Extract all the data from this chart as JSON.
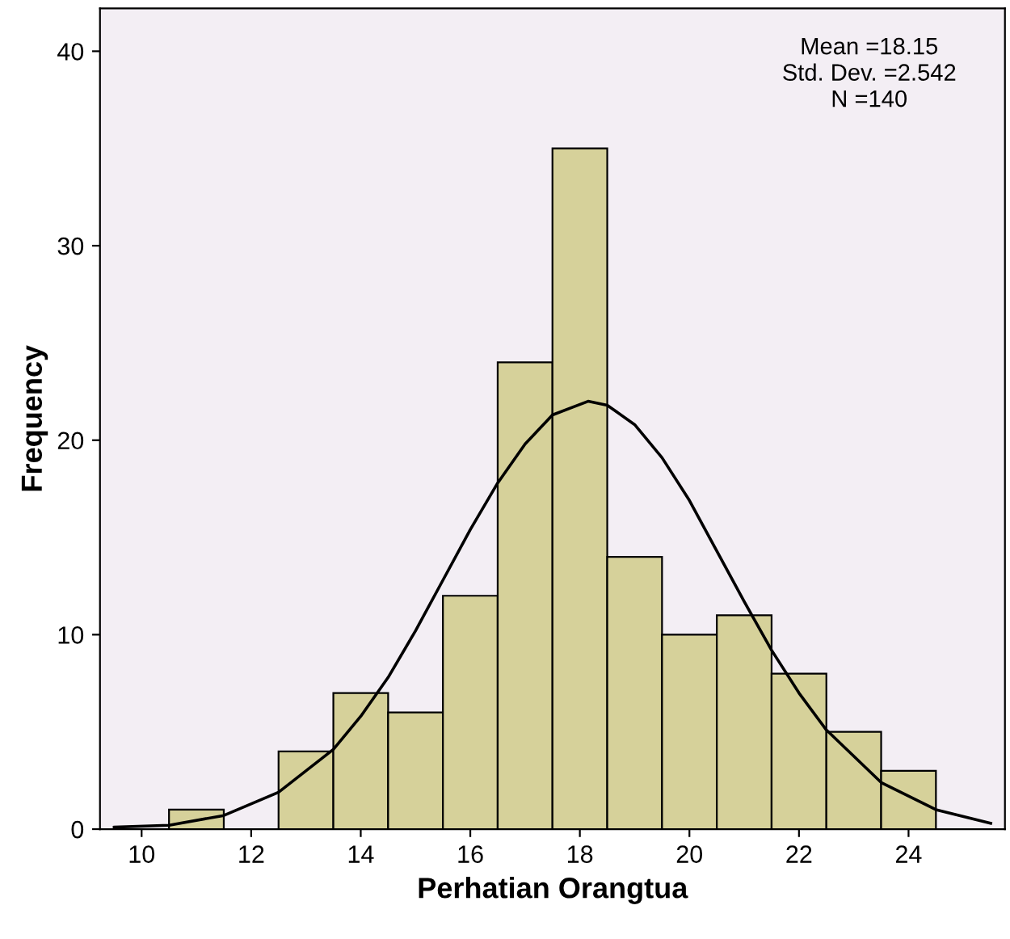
{
  "chart_data": {
    "type": "histogram",
    "xlabel": "Perhatian Orangtua",
    "ylabel": "Frequency",
    "bins": [
      10.5,
      11.5,
      12.5,
      13.5,
      14.5,
      15.5,
      16.5,
      17.5,
      18.5,
      19.5,
      20.5,
      21.5,
      22.5,
      23.5,
      24.5
    ],
    "values": [
      1,
      0,
      4,
      7,
      6,
      12,
      24,
      35,
      14,
      10,
      11,
      8,
      5,
      3
    ],
    "color": "#d6d19a",
    "series": [
      {
        "type": "line",
        "color": "#000000",
        "x": [
          9.5,
          10.5,
          11.5,
          12.5,
          13.5,
          14,
          14.5,
          15,
          15.5,
          16,
          16.5,
          17,
          17.5,
          18.15,
          18.5,
          19,
          19.5,
          20,
          20.5,
          21,
          21.5,
          22,
          22.5,
          23.5,
          24.5,
          25.5
        ],
        "values": [
          0.1,
          0.2,
          0.7,
          1.9,
          4.1,
          5.8,
          7.8,
          10.2,
          12.8,
          15.4,
          17.8,
          19.8,
          21.3,
          22.0,
          21.8,
          20.8,
          19.1,
          16.9,
          14.3,
          11.7,
          9.2,
          7.0,
          5.1,
          2.4,
          1.0,
          0.3
        ]
      }
    ],
    "xlim": [
      9.24,
      25.76
    ],
    "xticks": [
      10,
      12,
      14,
      16,
      18,
      20,
      22,
      24
    ],
    "ylim": [
      0,
      42.2
    ],
    "yticks": [
      0,
      10,
      20,
      30,
      40
    ],
    "grid": false,
    "legend": false,
    "annotations": [
      "Mean =18.15",
      "Std. Dev. =2.542",
      "N =140"
    ]
  }
}
